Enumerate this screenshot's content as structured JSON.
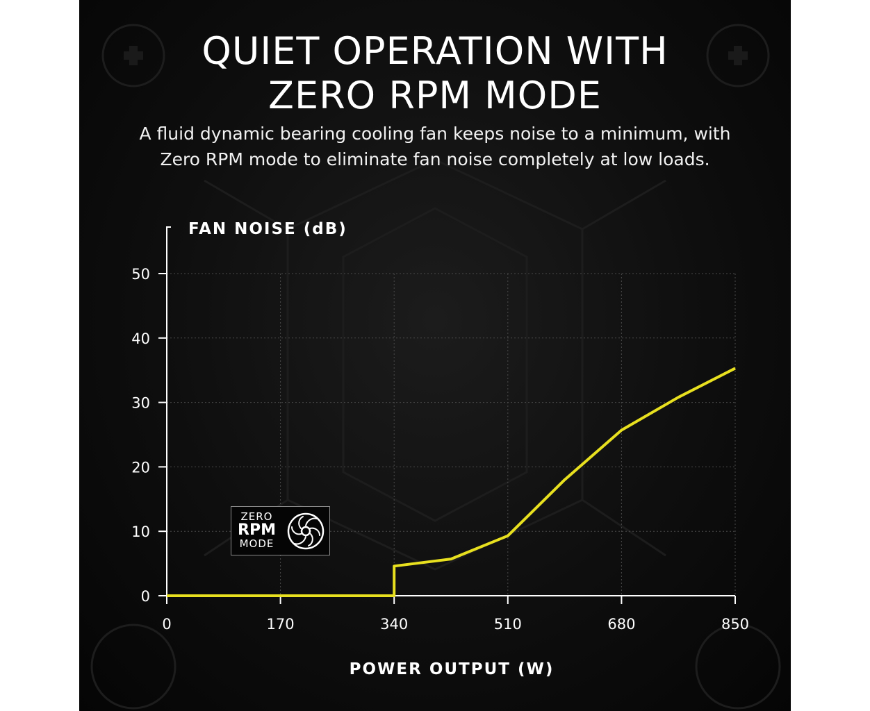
{
  "header": {
    "title_line1": "QUIET OPERATION WITH",
    "title_line2": "ZERO RPM MODE",
    "subtitle_line1": "A fluid dynamic bearing cooling fan keeps noise to a minimum, with",
    "subtitle_line2": "Zero RPM mode to eliminate fan noise completely at low loads."
  },
  "badge": {
    "line1": "ZERO",
    "line2": "RPM",
    "line3": "MODE",
    "icon": "fan-icon"
  },
  "colors": {
    "line": "#e8e01f",
    "background": "#0b0b0b",
    "text": "#ffffff",
    "grid": "#4a4a4a"
  },
  "chart_data": {
    "type": "line",
    "xlabel": "POWER OUTPUT (W)",
    "ylabel": "FAN NOISE (dB)",
    "xlim": [
      0,
      850
    ],
    "ylim": [
      0,
      50
    ],
    "x_ticks": [
      0,
      170,
      340,
      510,
      680,
      850
    ],
    "y_ticks": [
      0,
      10,
      20,
      30,
      40,
      50
    ],
    "grid": true,
    "series": [
      {
        "x": [
          0,
          340,
          340,
          425,
          510,
          595,
          680,
          765,
          850
        ],
        "y": [
          0,
          0,
          4.6,
          5.7,
          9.3,
          18.0,
          25.7,
          30.8,
          35.3
        ]
      }
    ]
  }
}
